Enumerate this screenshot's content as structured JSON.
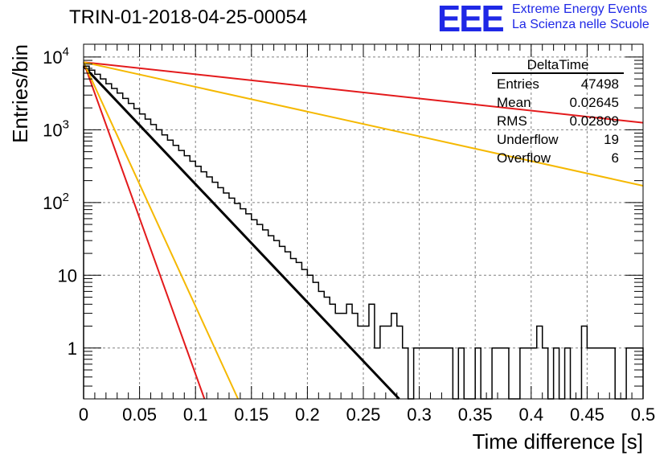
{
  "header": {
    "run_id": "TRIN-01-2018-04-25-00054",
    "logo": "EEE",
    "org_line1": "Extreme Energy Events",
    "org_line2": "La Scienza nelle Scuole"
  },
  "stats_box": {
    "title": "DeltaTime",
    "rows": [
      {
        "label": "Entries",
        "value": "47498"
      },
      {
        "label": "Mean",
        "value": "0.02645"
      },
      {
        "label": "RMS",
        "value": "0.02809"
      },
      {
        "label": "Underflow",
        "value": "19"
      },
      {
        "label": "Overflow",
        "value": "6"
      }
    ]
  },
  "chart_data": {
    "type": "line",
    "title": "TRIN-01-2018-04-25-00054",
    "xlabel": "Time difference [s]",
    "ylabel": "Entries/bin",
    "xlim": [
      0,
      0.5
    ],
    "ylim": [
      0.2,
      15000
    ],
    "yscale": "log",
    "grid": true,
    "legend": "stats box top-right",
    "x_ticks": [
      "0",
      "0.05",
      "0.1",
      "0.15",
      "0.2",
      "0.25",
      "0.3",
      "0.35",
      "0.4",
      "0.45",
      "0.5"
    ],
    "y_ticks": [
      {
        "base": "10",
        "exp": "4",
        "value": 10000
      },
      {
        "base": "10",
        "exp": "3",
        "value": 1000
      },
      {
        "base": "10",
        "exp": "2",
        "value": 100
      },
      {
        "base": "10",
        "exp": "",
        "value": 10
      },
      {
        "base": "1",
        "exp": "",
        "value": 1
      }
    ],
    "colors": {
      "histogram": "#000000",
      "fit": "#000000",
      "red": "#e31a1c",
      "orange": "#f5b800"
    },
    "histogram": {
      "bin_width": 0.005,
      "first_bin": 0,
      "values": [
        7500,
        6600,
        5800,
        5000,
        4300,
        3700,
        3200,
        2700,
        2300,
        1950,
        1650,
        1400,
        1180,
        1000,
        850,
        720,
        610,
        520,
        440,
        370,
        315,
        265,
        225,
        190,
        160,
        135,
        115,
        97,
        82,
        70,
        58,
        50,
        42,
        35,
        30,
        25,
        21,
        17,
        15,
        12,
        10,
        8,
        6,
        5,
        4,
        3,
        3,
        4,
        3,
        2,
        2,
        4,
        1,
        2,
        2,
        3,
        2,
        1,
        0,
        1,
        1,
        1,
        1,
        1,
        1,
        1,
        0,
        1,
        0,
        0,
        1,
        0,
        0,
        1,
        1,
        1,
        0,
        0,
        1,
        1,
        1,
        2,
        1,
        0,
        1,
        0,
        1,
        0,
        0,
        2,
        1,
        1,
        1,
        1,
        1,
        0,
        0,
        1,
        1,
        1
      ]
    },
    "series": [
      {
        "color": "#000000",
        "x": [
          0,
          0.282
        ],
        "y": [
          7500,
          0.2
        ]
      },
      {
        "color": "#e31a1c",
        "x": [
          0,
          0.5
        ],
        "y": [
          8500,
          1250
        ]
      },
      {
        "color": "#f5b800",
        "x": [
          0,
          0.5
        ],
        "y": [
          8500,
          170
        ]
      },
      {
        "color": "#e31a1c",
        "x": [
          0,
          0.108
        ],
        "y": [
          8500,
          0.2
        ]
      },
      {
        "color": "#f5b800",
        "x": [
          0,
          0.138
        ],
        "y": [
          8500,
          0.2
        ]
      }
    ]
  }
}
